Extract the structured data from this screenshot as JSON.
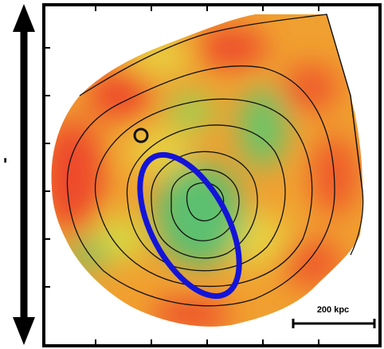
{
  "left_label": "'",
  "scale_bar": {
    "label": "200 kpc"
  }
}
